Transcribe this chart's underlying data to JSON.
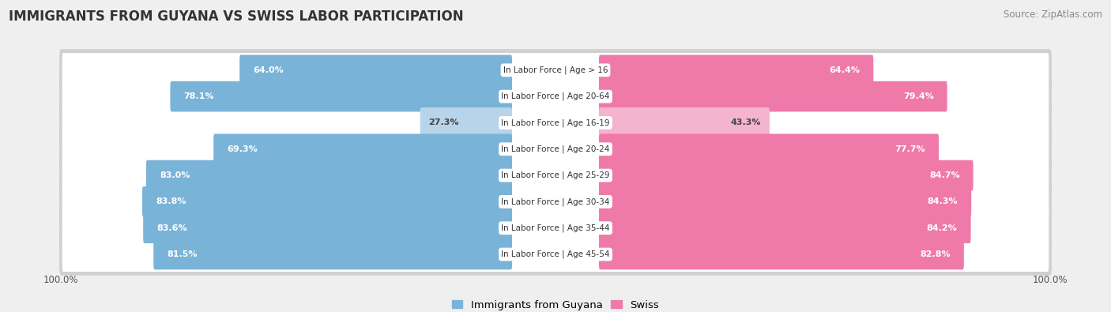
{
  "title": "IMMIGRANTS FROM GUYANA VS SWISS LABOR PARTICIPATION",
  "source": "Source: ZipAtlas.com",
  "categories": [
    "In Labor Force | Age > 16",
    "In Labor Force | Age 20-64",
    "In Labor Force | Age 16-19",
    "In Labor Force | Age 20-24",
    "In Labor Force | Age 25-29",
    "In Labor Force | Age 30-34",
    "In Labor Force | Age 35-44",
    "In Labor Force | Age 45-54"
  ],
  "guyana_values": [
    64.0,
    78.1,
    27.3,
    69.3,
    83.0,
    83.8,
    83.6,
    81.5
  ],
  "swiss_values": [
    64.4,
    79.4,
    43.3,
    77.7,
    84.7,
    84.3,
    84.2,
    82.8
  ],
  "guyana_color": "#7ab3d8",
  "guyana_color_light": "#b8d4ea",
  "swiss_color": "#ef7aaa",
  "swiss_color_light": "#f4b3ce",
  "bg_color": "#efefef",
  "row_bg_color": "#e0e0e0",
  "bar_bg_color": "#ffffff",
  "title_fontsize": 12,
  "source_fontsize": 8.5,
  "legend_fontsize": 9.5,
  "axis_label_fontsize": 8.5,
  "max_val": 100.0
}
